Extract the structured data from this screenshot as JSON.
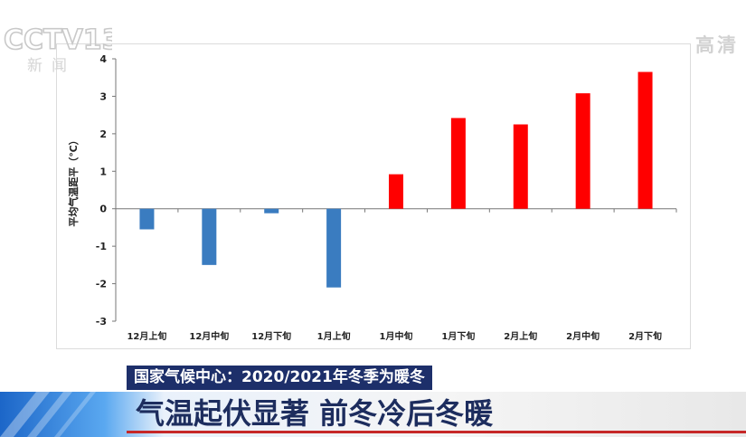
{
  "channel": {
    "logo": "CCTV13",
    "sub": "新闻",
    "quality": "高清"
  },
  "chart_data": {
    "type": "bar",
    "title": "",
    "ylabel": "平均气温距平（℃）",
    "xlabel": "",
    "categories": [
      "12月上旬",
      "12月中旬",
      "12月下旬",
      "1月上旬",
      "1月中旬",
      "1月下旬",
      "2月上旬",
      "2月中旬",
      "2月下旬"
    ],
    "values": [
      -0.55,
      -1.5,
      -0.12,
      -2.1,
      0.92,
      2.42,
      2.25,
      3.08,
      3.65
    ],
    "ylim": [
      -3,
      4
    ],
    "yticks": [
      "-3",
      "-2",
      "-1",
      "0",
      "1",
      "2",
      "3",
      "4"
    ],
    "grid": false,
    "colors": {
      "negative": "#3a7cc0",
      "positive": "#ff0000"
    }
  },
  "caption": {
    "top": "国家气候中心：2020/2021年冬季为暖冬",
    "main": "气温起伏显著 前冬冷后冬暖"
  }
}
